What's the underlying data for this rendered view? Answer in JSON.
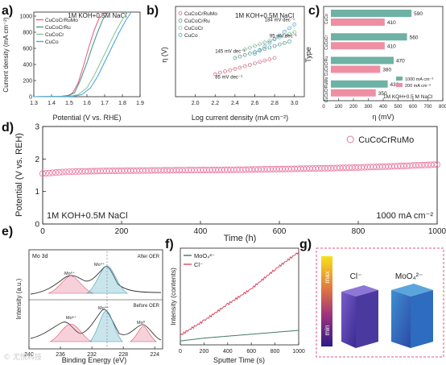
{
  "panels": {
    "a": {
      "label": "a)"
    },
    "b": {
      "label": "b)"
    },
    "c": {
      "label": "c)"
    },
    "d": {
      "label": "d)"
    },
    "e": {
      "label": "e)"
    },
    "f": {
      "label": "f)"
    },
    "g": {
      "label": "g)"
    }
  },
  "watermark": "© 尤悦科技",
  "colors": {
    "CuCoCrRuMo": "#e06a83",
    "CuCoCrRu": "#4f9a8f",
    "CuCoCr": "#8fc59a",
    "CuCo": "#49a9d8",
    "moo4": "#3f7a63",
    "cl": "#d84a63",
    "bar1000": "#6db2a4",
    "bar200": "#ee8fa4",
    "d_marker": "#e8739b",
    "g_frame": "#e05a7a"
  },
  "chart_data": [
    {
      "id": "a",
      "type": "line",
      "xlabel": "Potential (V vs. RHE)",
      "ylabel": "Current density (mA cm⁻²)",
      "xlim": [
        1.3,
        1.9
      ],
      "ylim": [
        0,
        1050
      ],
      "xticks": [
        "1.3",
        "1.4",
        "1.5",
        "1.6",
        "1.7",
        "1.8",
        "1.9"
      ],
      "yticks": [
        "0",
        "200",
        "400",
        "600",
        "800",
        "1000"
      ],
      "annotation": "1M KOH+0.5M NaCl",
      "legend_position": "top-left",
      "series": [
        {
          "name": "CuCoCrRuMo",
          "x": [
            1.3,
            1.45,
            1.5,
            1.52,
            1.55,
            1.58,
            1.61,
            1.64,
            1.67,
            1.71
          ],
          "y": [
            0,
            3,
            18,
            50,
            170,
            380,
            610,
            820,
            980,
            1060
          ]
        },
        {
          "name": "CuCoCrRu",
          "x": [
            1.3,
            1.45,
            1.5,
            1.53,
            1.56,
            1.6,
            1.63,
            1.66,
            1.69,
            1.72
          ],
          "y": [
            0,
            3,
            15,
            50,
            190,
            420,
            620,
            800,
            960,
            1060
          ]
        },
        {
          "name": "CuCoCr",
          "x": [
            1.3,
            1.5,
            1.55,
            1.6,
            1.64,
            1.68,
            1.72,
            1.76,
            1.8,
            1.83
          ],
          "y": [
            0,
            4,
            25,
            110,
            260,
            440,
            620,
            800,
            960,
            1060
          ]
        },
        {
          "name": "CuCo",
          "x": [
            1.3,
            1.52,
            1.57,
            1.62,
            1.66,
            1.7,
            1.74,
            1.78,
            1.82,
            1.85
          ],
          "y": [
            0,
            4,
            25,
            110,
            250,
            430,
            610,
            790,
            950,
            1060
          ]
        }
      ]
    },
    {
      "id": "b",
      "type": "scatter",
      "xlabel": "Log current density (mA cm⁻²)",
      "ylabel": "η (V)",
      "xlim": [
        1.8,
        3.1
      ],
      "ylim": [
        1.45,
        1.87
      ],
      "xticks": [
        "2.0",
        "2.2",
        "2.4",
        "2.6",
        "2.8",
        "3.0"
      ],
      "yticks": [],
      "annotation": "1M KOH+0.5M NaCl",
      "legend_position": "top-left",
      "series": [
        {
          "name": "CuCoCrRuMo",
          "x": [
            2.2,
            2.25,
            2.3,
            2.35,
            2.4,
            2.45,
            2.5,
            2.55,
            2.6,
            2.65,
            2.7,
            2.75,
            2.8
          ],
          "y": [
            1.555,
            1.562,
            1.568,
            1.573,
            1.579,
            1.585,
            1.592,
            1.598,
            1.605,
            1.612,
            1.618,
            1.624,
            1.63
          ]
        },
        {
          "name": "CuCoCrRu",
          "x": [
            2.4,
            2.45,
            2.5,
            2.55,
            2.6,
            2.65,
            2.7,
            2.75,
            2.8,
            2.85,
            2.9,
            2.95
          ],
          "y": [
            1.63,
            1.637,
            1.644,
            1.651,
            1.658,
            1.665,
            1.672,
            1.679,
            1.686,
            1.693,
            1.7,
            1.707
          ]
        },
        {
          "name": "CuCoCr",
          "x": [
            2.5,
            2.55,
            2.6,
            2.65,
            2.7,
            2.75,
            2.8,
            2.85,
            2.9,
            2.95,
            3.0
          ],
          "y": [
            1.67,
            1.678,
            1.686,
            1.694,
            1.702,
            1.71,
            1.718,
            1.726,
            1.734,
            1.742,
            1.75
          ]
        },
        {
          "name": "CuCo",
          "x": [
            2.6,
            2.65,
            2.7,
            2.75,
            2.8,
            2.85,
            2.9,
            2.95,
            3.0
          ],
          "y": [
            1.65,
            1.667,
            1.684,
            1.701,
            1.718,
            1.735,
            1.752,
            1.769,
            1.786
          ]
        }
      ],
      "tafel_labels": [
        "85 mV dec⁻¹",
        "145 mV dec⁻¹",
        "95 mV dec⁻¹",
        "184 mV dec⁻¹"
      ]
    },
    {
      "id": "c",
      "type": "bar",
      "orientation": "horizontal",
      "xlabel": "η (mV)",
      "ylabel": "Type",
      "xlim": [
        0,
        800
      ],
      "xticks": [
        "0",
        "100",
        "200",
        "300",
        "400",
        "500",
        "600",
        "700",
        "800"
      ],
      "categories": [
        "CuCo",
        "CuCoCr",
        "CuCoCrRu",
        "CuCoCrRuMo"
      ],
      "series": [
        {
          "name": "1000 mA cm⁻²",
          "values": [
            590,
            560,
            470,
            430
          ]
        },
        {
          "name": "200 mA cm⁻²",
          "values": [
            410,
            410,
            380,
            350
          ]
        }
      ],
      "annotation": "1M KOH+0.5 M NaCl",
      "legend_position": "bottom-right"
    },
    {
      "id": "d",
      "type": "scatter",
      "xlabel": "Time (h)",
      "ylabel": "Potential (V vs. REH)",
      "xlim": [
        0,
        1000
      ],
      "ylim": [
        0,
        3
      ],
      "xticks": [
        "0",
        "200",
        "400",
        "600",
        "800",
        "1000"
      ],
      "yticks": [
        "0",
        "1",
        "2",
        "3"
      ],
      "series": [
        {
          "name": "CuCoCrRuMo",
          "x": [
            0,
            50,
            100,
            200,
            300,
            400,
            500,
            600,
            700,
            800,
            900,
            1000
          ],
          "y": [
            1.55,
            1.6,
            1.62,
            1.64,
            1.65,
            1.66,
            1.67,
            1.69,
            1.71,
            1.74,
            1.78,
            1.83
          ]
        }
      ],
      "annotations": [
        "1M KOH+0.5M NaCl",
        "1000 mA cm⁻²"
      ]
    },
    {
      "id": "e",
      "type": "line",
      "title": "Mo 3d",
      "xlabel": "Binding Energy (eV)",
      "ylabel": "Intensity (a.u.)",
      "xlim": [
        240,
        223
      ],
      "xticks": [
        "240",
        "236",
        "232",
        "228",
        "224"
      ],
      "subplots": [
        "After OER",
        "Before OER"
      ],
      "peaks": [
        "Mo⁶⁺",
        "Mo⁴⁺",
        "Mo⁶⁺",
        "Mo⁴⁺",
        "Mo⁰"
      ]
    },
    {
      "id": "f",
      "type": "line",
      "xlabel": "Sputter Time (s)",
      "ylabel": "Intensity (contents)",
      "xlim": [
        0,
        1000
      ],
      "xticks": [
        "0",
        "200",
        "400",
        "600",
        "800",
        "1000"
      ],
      "legend_position": "top-left",
      "series": [
        {
          "name": "MoO₄²⁻",
          "x": [
            0,
            200,
            400,
            600,
            800,
            1000
          ],
          "y": [
            0.04,
            0.07,
            0.09,
            0.11,
            0.13,
            0.15
          ]
        },
        {
          "name": "Cl⁻",
          "x": [
            0,
            200,
            400,
            600,
            800,
            1000
          ],
          "y": [
            0.1,
            0.25,
            0.42,
            0.58,
            0.78,
            0.96
          ]
        }
      ]
    },
    {
      "id": "g",
      "type": "heatmap",
      "colorbar": [
        "max",
        "min"
      ],
      "labels": [
        "Cl⁻",
        "MoO₄²⁻"
      ]
    }
  ]
}
